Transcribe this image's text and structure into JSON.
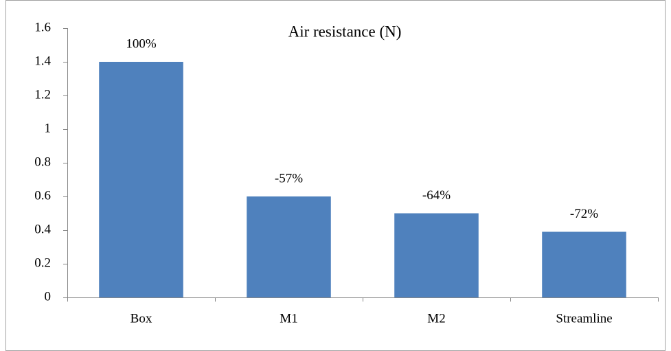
{
  "chart_data": {
    "type": "bar",
    "title": "Air resistance (N)",
    "categories": [
      "Box",
      "M1",
      "M2",
      "Streamline"
    ],
    "values": [
      1.4,
      0.6,
      0.5,
      0.39
    ],
    "annotations": [
      "100%",
      "-57%",
      "-64%",
      "-72%"
    ],
    "color": "#4f81bd",
    "ylim": [
      0,
      1.6
    ],
    "yticks": [
      0,
      0.2,
      0.4,
      0.6,
      0.8,
      1,
      1.2,
      1.4,
      1.6
    ],
    "grid": false
  }
}
